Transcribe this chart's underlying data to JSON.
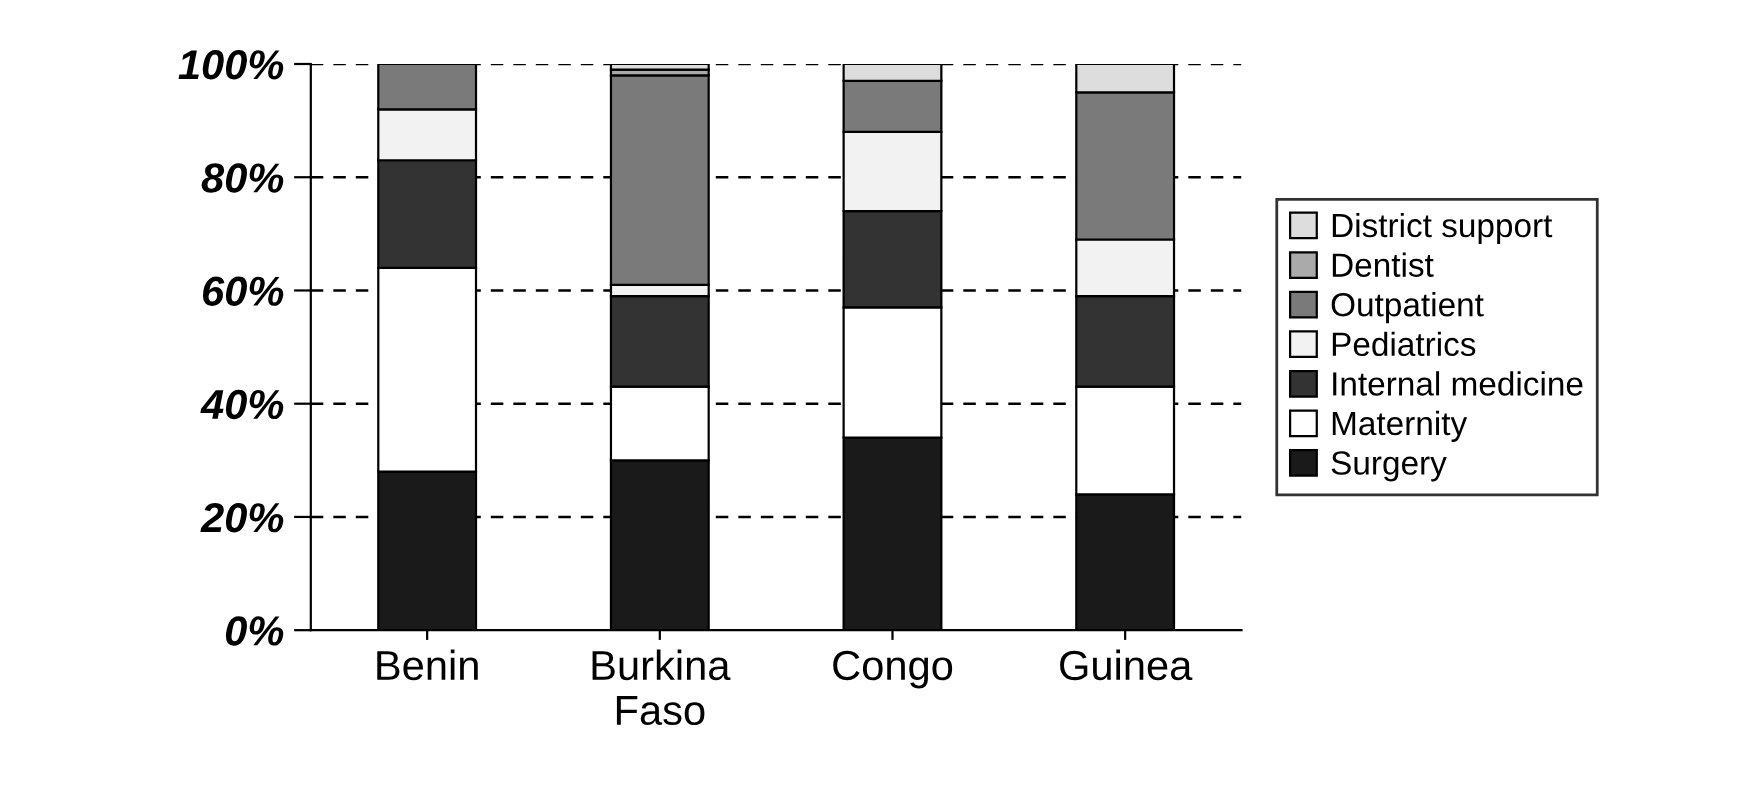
{
  "chart_data": {
    "type": "bar",
    "stacked": true,
    "categories": [
      "Benin",
      "Burkina\nFaso",
      "Congo",
      "Guinea"
    ],
    "series": [
      {
        "name": "Surgery",
        "color": "#1a1a1a",
        "values": [
          28,
          30,
          34,
          24
        ]
      },
      {
        "name": "Maternity",
        "color": "#ffffff",
        "values": [
          36,
          13,
          23,
          19
        ]
      },
      {
        "name": "Internal medicine",
        "color": "#333333",
        "values": [
          19,
          16,
          17,
          16
        ]
      },
      {
        "name": "Pediatrics",
        "color": "#f2f2f2",
        "values": [
          9,
          2,
          14,
          10
        ]
      },
      {
        "name": "Outpatient",
        "color": "#7a7a7a",
        "values": [
          8,
          37,
          9,
          26
        ]
      },
      {
        "name": "Dentist",
        "color": "#aaaaaa",
        "values": [
          0,
          1,
          0,
          0
        ]
      },
      {
        "name": "District support",
        "color": "#dddddd",
        "values": [
          0,
          1,
          3,
          5
        ]
      }
    ],
    "ylim": [
      0,
      100
    ],
    "yticks": [
      {
        "value": 0,
        "label": "0%"
      },
      {
        "value": 20,
        "label": "20%"
      },
      {
        "value": 40,
        "label": "40%"
      },
      {
        "value": 60,
        "label": "60%"
      },
      {
        "value": 80,
        "label": "80%"
      },
      {
        "value": 100,
        "label": "100%"
      }
    ],
    "grid": "y",
    "legend": "right"
  }
}
